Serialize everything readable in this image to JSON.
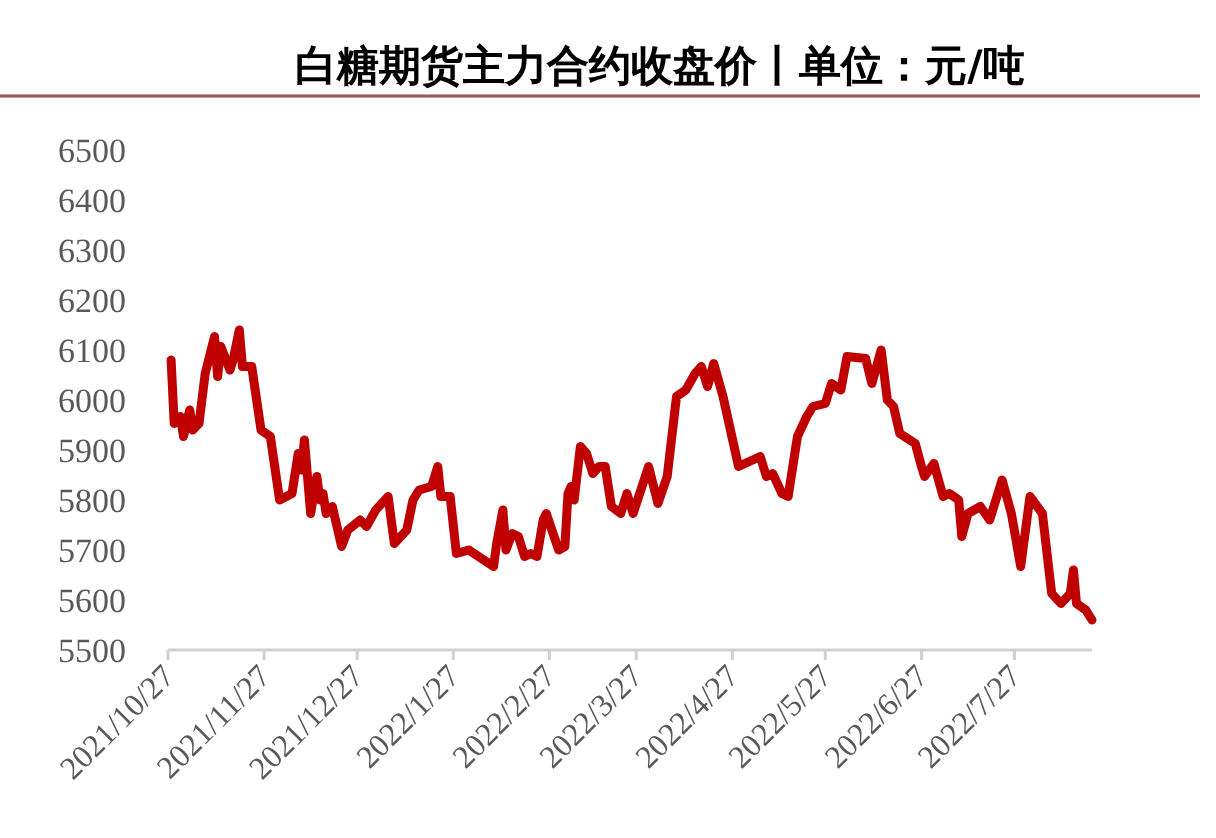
{
  "chart_data": {
    "type": "line",
    "title": "白糖期货主力合约收盘价丨单位：元/吨",
    "x": [
      "2021-10-28",
      "2021-10-29",
      "2021-10-31",
      "2021-11-01",
      "2021-11-03",
      "2021-11-04",
      "2021-11-06",
      "2021-11-08",
      "2021-11-11",
      "2021-11-12",
      "2021-11-13",
      "2021-11-16",
      "2021-11-17",
      "2021-11-19",
      "2021-11-20",
      "2021-11-23",
      "2021-11-26",
      "2021-11-29",
      "2021-12-02",
      "2021-12-06",
      "2021-12-08",
      "2021-12-09",
      "2021-12-10",
      "2021-12-12",
      "2021-12-14",
      "2021-12-15",
      "2021-12-16",
      "2021-12-17",
      "2021-12-19",
      "2021-12-22",
      "2021-12-24",
      "2021-12-28",
      "2021-12-30",
      "2022-01-02",
      "2022-01-06",
      "2022-01-08",
      "2022-01-12",
      "2022-01-14",
      "2022-01-16",
      "2022-01-20",
      "2022-01-22",
      "2022-01-23",
      "2022-01-26",
      "2022-01-28",
      "2022-02-01",
      "2022-02-09",
      "2022-02-10",
      "2022-02-12",
      "2022-02-13",
      "2022-02-15",
      "2022-02-17",
      "2022-02-19",
      "2022-02-21",
      "2022-02-23",
      "2022-02-25",
      "2022-02-26",
      "2022-03-02",
      "2022-03-04",
      "2022-03-05",
      "2022-03-06",
      "2022-03-07",
      "2022-03-09",
      "2022-03-11",
      "2022-03-13",
      "2022-03-15",
      "2022-03-17",
      "2022-03-19",
      "2022-03-22",
      "2022-03-24",
      "2022-03-26",
      "2022-03-31",
      "2022-04-03",
      "2022-04-06",
      "2022-04-09",
      "2022-04-12",
      "2022-04-15",
      "2022-04-17",
      "2022-04-19",
      "2022-04-21",
      "2022-04-24",
      "2022-04-29",
      "2022-05-06",
      "2022-05-08",
      "2022-05-10",
      "2022-05-13",
      "2022-05-15",
      "2022-05-18",
      "2022-05-21",
      "2022-05-23",
      "2022-05-27",
      "2022-05-29",
      "2022-06-01",
      "2022-06-03",
      "2022-06-09",
      "2022-06-11",
      "2022-06-14",
      "2022-06-16",
      "2022-06-18",
      "2022-06-20",
      "2022-06-25",
      "2022-06-27",
      "2022-06-28",
      "2022-07-01",
      "2022-07-04",
      "2022-07-06",
      "2022-07-09",
      "2022-07-10",
      "2022-07-12",
      "2022-07-16",
      "2022-07-19",
      "2022-07-23",
      "2022-07-26",
      "2022-07-29",
      "2022-08-01",
      "2022-08-05",
      "2022-08-08",
      "2022-08-11",
      "2022-08-14",
      "2022-08-15",
      "2022-08-16",
      "2022-08-19",
      "2022-08-21"
    ],
    "series": [
      {
        "color": "#c00000",
        "values": [
          6080,
          5953,
          5967,
          5927,
          5980,
          5940,
          5953,
          6053,
          6127,
          6047,
          6107,
          6060,
          6080,
          6140,
          6067,
          6067,
          5940,
          5927,
          5800,
          5813,
          5893,
          5860,
          5920,
          5773,
          5847,
          5800,
          5813,
          5773,
          5787,
          5707,
          5740,
          5760,
          5747,
          5780,
          5807,
          5713,
          5740,
          5800,
          5820,
          5827,
          5867,
          5807,
          5807,
          5693,
          5700,
          5667,
          5713,
          5780,
          5700,
          5733,
          5727,
          5687,
          5693,
          5687,
          5760,
          5773,
          5700,
          5707,
          5813,
          5827,
          5800,
          5907,
          5893,
          5853,
          5867,
          5867,
          5787,
          5773,
          5813,
          5773,
          5867,
          5793,
          5847,
          6007,
          6020,
          6053,
          6067,
          6027,
          6073,
          6007,
          5867,
          5887,
          5847,
          5853,
          5813,
          5807,
          5927,
          5967,
          5987,
          5993,
          6033,
          6020,
          6087,
          6083,
          6033,
          6100,
          6000,
          5987,
          5933,
          5913,
          5867,
          5847,
          5873,
          5807,
          5813,
          5800,
          5727,
          5773,
          5787,
          5760,
          5840,
          5773,
          5667,
          5807,
          5773,
          5613,
          5593,
          5613,
          5660,
          5593,
          5580,
          5560
        ]
      }
    ],
    "xlim": [
      "2021-10-27",
      "2022-08-21"
    ],
    "xticks": [
      {
        "value": "2021-10-27",
        "label": "2021/10/27"
      },
      {
        "value": "2021-11-27",
        "label": "2021/11/27"
      },
      {
        "value": "2021-12-27",
        "label": "2021/12/27"
      },
      {
        "value": "2022-01-27",
        "label": "2022/1/27"
      },
      {
        "value": "2022-02-27",
        "label": "2022/2/27"
      },
      {
        "value": "2022-03-27",
        "label": "2022/3/27"
      },
      {
        "value": "2022-04-27",
        "label": "2022/4/27"
      },
      {
        "value": "2022-05-27",
        "label": "2022/5/27"
      },
      {
        "value": "2022-06-27",
        "label": "2022/6/27"
      },
      {
        "value": "2022-07-27",
        "label": "2022/7/27"
      }
    ],
    "ylim": [
      5500,
      6500
    ],
    "yticks": [
      5500,
      5600,
      5700,
      5800,
      5900,
      6000,
      6100,
      6200,
      6300,
      6400,
      6500
    ],
    "grid": false,
    "marker": "none",
    "line_style": "solid"
  }
}
